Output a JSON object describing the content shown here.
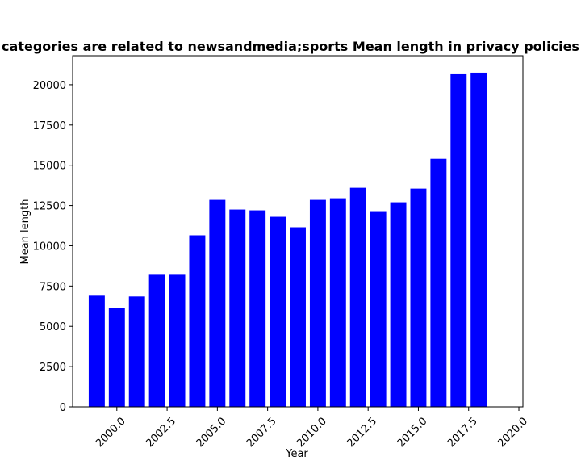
{
  "chart_data": {
    "type": "bar",
    "title": "categories are related to newsandmedia;sports Mean length in privacy policies",
    "xlabel": "Year",
    "ylabel": "Mean length",
    "x": [
      1999,
      2000,
      2001,
      2002,
      2003,
      2004,
      2005,
      2006,
      2007,
      2008,
      2009,
      2010,
      2011,
      2012,
      2013,
      2014,
      2015,
      2016,
      2017,
      2018
    ],
    "values": [
      6900,
      6150,
      6850,
      8200,
      8200,
      10650,
      12850,
      12250,
      12200,
      11800,
      11150,
      12850,
      12950,
      13600,
      12150,
      12700,
      13550,
      15400,
      20650,
      20750
    ],
    "bar_color": "#0000ff",
    "xlim": [
      1997.8,
      2020.2
    ],
    "ylim": [
      0,
      21800
    ],
    "xticks": [
      2000,
      2002.5,
      2005,
      2007.5,
      2010,
      2012.5,
      2015,
      2017.5,
      2020
    ],
    "xtick_labels": [
      "2000.0",
      "2002.5",
      "2005.0",
      "2007.5",
      "2010.0",
      "2012.5",
      "2015.0",
      "2017.5",
      "2020.0"
    ],
    "yticks": [
      0,
      2500,
      5000,
      7500,
      10000,
      12500,
      15000,
      17500,
      20000
    ],
    "ytick_labels": [
      "0",
      "2500",
      "5000",
      "7500",
      "10000",
      "12500",
      "15000",
      "17500",
      "20000"
    ],
    "grid": false,
    "legend": "none"
  }
}
